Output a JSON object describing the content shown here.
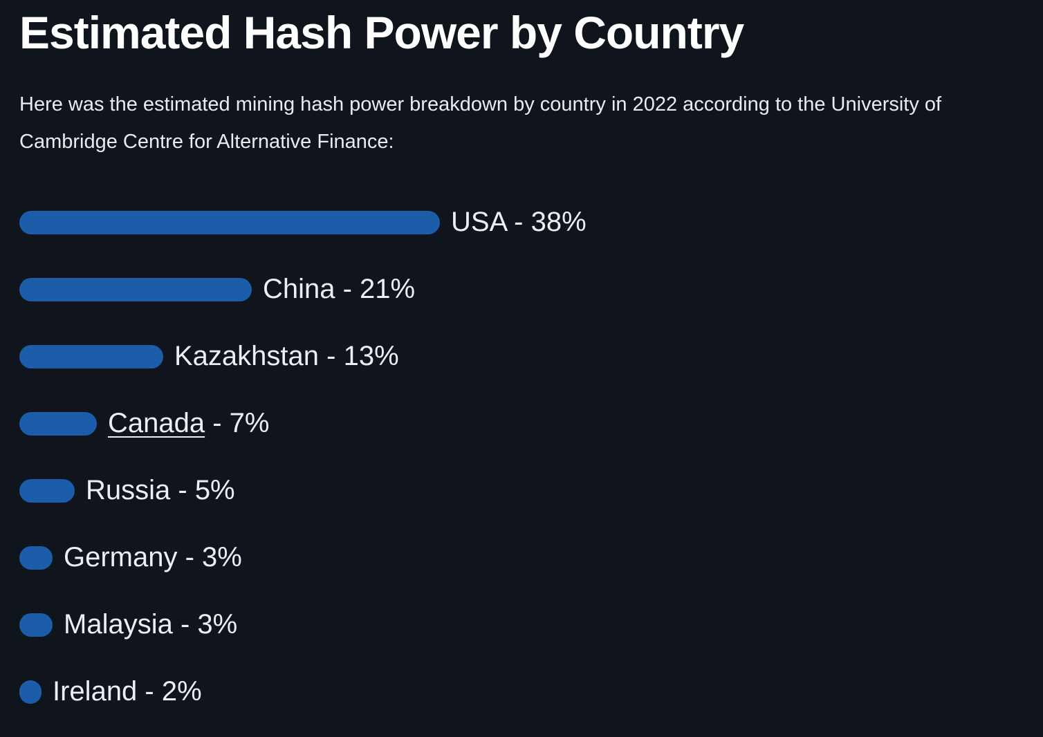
{
  "page": {
    "title": "Estimated Hash Power by Country",
    "intro": "Here was the estimated mining hash power breakdown by country in 2022 according to the University of Cambridge Centre for Alternative Finance:"
  },
  "chart_data": {
    "type": "bar",
    "orientation": "horizontal",
    "title": "Estimated Hash Power by Country",
    "categories": [
      "USA",
      "China",
      "Kazakhstan",
      "Canada",
      "Russia",
      "Germany",
      "Malaysia",
      "Ireland"
    ],
    "values": [
      38,
      21,
      13,
      7,
      5,
      3,
      3,
      2
    ],
    "unit": "%",
    "label_separator": " - ",
    "bar_color": "#1b5da9",
    "linked_category": "Canada",
    "xlim": [
      0,
      40
    ],
    "legend": "none",
    "grid": "off"
  }
}
